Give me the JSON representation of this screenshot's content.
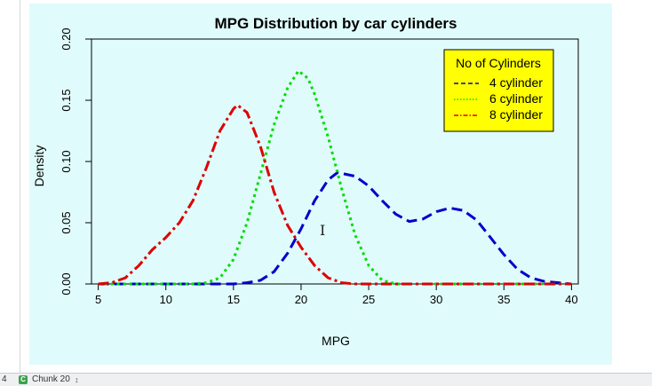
{
  "statusbar": {
    "line_number": "4",
    "chunk_label": "Chunk 20",
    "chunk_icon": "chunk-icon",
    "chunk_arrows": "↕"
  },
  "chart_data": {
    "type": "line",
    "title": "MPG Distribution by car cylinders",
    "xlabel": "MPG",
    "ylabel": "Density",
    "xlim": [
      4.5,
      40.5
    ],
    "ylim": [
      0,
      0.2
    ],
    "x_ticks": [
      "5",
      "10",
      "15",
      "20",
      "25",
      "30",
      "35",
      "40"
    ],
    "y_ticks": [
      "0.00",
      "0.05",
      "0.10",
      "0.15",
      "0.20"
    ],
    "grid": false,
    "legend": {
      "title": "No of Cylinders",
      "placement": "top-right",
      "background": "#ffff00"
    },
    "series": [
      {
        "name": "4 cylinder",
        "color": "#0000cc",
        "linestyle": "dashed",
        "points": [
          [
            5,
            0
          ],
          [
            10,
            0
          ],
          [
            15,
            0
          ],
          [
            16,
            0.001
          ],
          [
            17,
            0.003
          ],
          [
            18,
            0.01
          ],
          [
            19,
            0.025
          ],
          [
            20,
            0.045
          ],
          [
            21,
            0.068
          ],
          [
            22,
            0.085
          ],
          [
            22.7,
            0.091
          ],
          [
            24,
            0.088
          ],
          [
            25,
            0.08
          ],
          [
            26,
            0.068
          ],
          [
            27,
            0.057
          ],
          [
            28,
            0.051
          ],
          [
            29,
            0.053
          ],
          [
            30,
            0.059
          ],
          [
            31,
            0.062
          ],
          [
            32,
            0.06
          ],
          [
            33,
            0.052
          ],
          [
            34,
            0.038
          ],
          [
            35,
            0.024
          ],
          [
            36,
            0.012
          ],
          [
            37,
            0.005
          ],
          [
            38,
            0.002
          ],
          [
            40,
            0
          ]
        ]
      },
      {
        "name": "6 cylinder",
        "color": "#00dd00",
        "linestyle": "dotted",
        "points": [
          [
            5,
            0
          ],
          [
            12,
            0
          ],
          [
            13,
            0.001
          ],
          [
            14,
            0.005
          ],
          [
            15,
            0.02
          ],
          [
            16,
            0.05
          ],
          [
            17,
            0.09
          ],
          [
            18,
            0.13
          ],
          [
            19,
            0.16
          ],
          [
            19.8,
            0.174
          ],
          [
            20.5,
            0.168
          ],
          [
            21,
            0.155
          ],
          [
            22,
            0.12
          ],
          [
            23,
            0.078
          ],
          [
            24,
            0.04
          ],
          [
            25,
            0.015
          ],
          [
            26,
            0.003
          ],
          [
            27,
            0
          ],
          [
            40,
            0
          ]
        ]
      },
      {
        "name": "8 cylinder",
        "color": "#dd0000",
        "linestyle": "dotdash",
        "points": [
          [
            5,
            0
          ],
          [
            6,
            0.001
          ],
          [
            7,
            0.005
          ],
          [
            8,
            0.015
          ],
          [
            9,
            0.028
          ],
          [
            10,
            0.038
          ],
          [
            11,
            0.05
          ],
          [
            12,
            0.068
          ],
          [
            13,
            0.095
          ],
          [
            14,
            0.125
          ],
          [
            15,
            0.143
          ],
          [
            15.3,
            0.146
          ],
          [
            16,
            0.14
          ],
          [
            17,
            0.112
          ],
          [
            18,
            0.075
          ],
          [
            19,
            0.048
          ],
          [
            20,
            0.03
          ],
          [
            21,
            0.015
          ],
          [
            22,
            0.005
          ],
          [
            23,
            0.001
          ],
          [
            24,
            0
          ],
          [
            40,
            0
          ]
        ]
      }
    ]
  }
}
